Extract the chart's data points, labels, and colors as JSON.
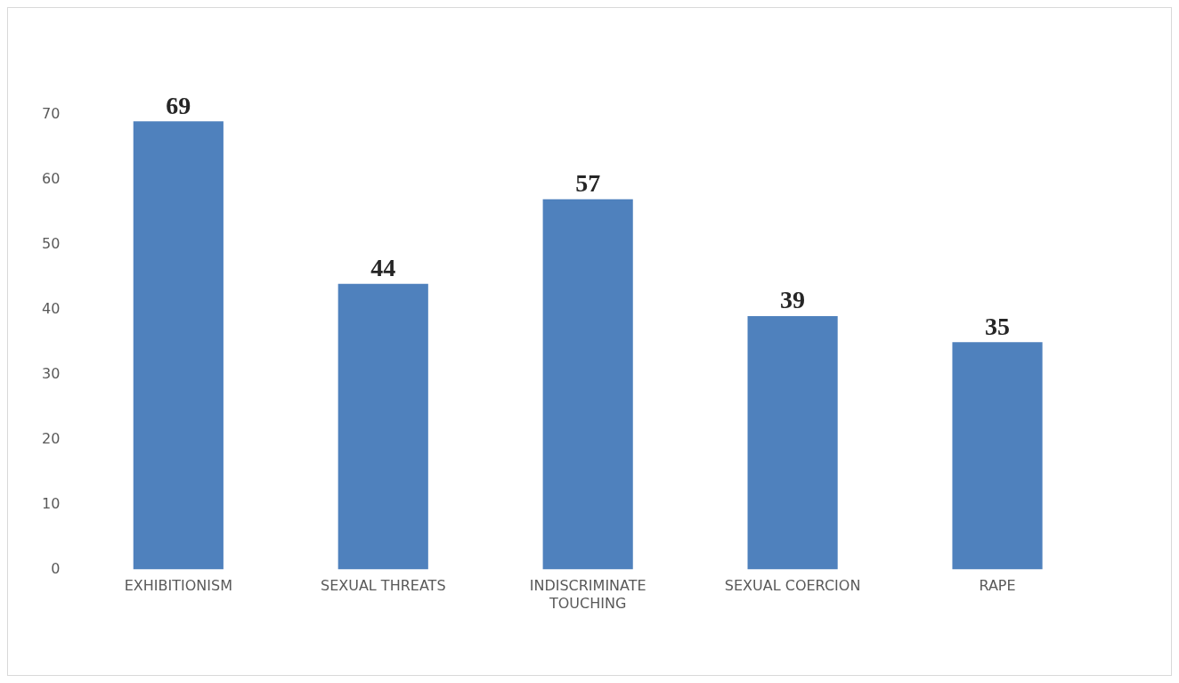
{
  "chart_data": {
    "type": "bar",
    "categories": [
      "EXHIBITIONISM",
      "SEXUAL THREATS",
      "INDISCRIMINATE TOUCHING",
      "SEXUAL COERCION",
      "RAPE"
    ],
    "values": [
      69,
      44,
      57,
      39,
      35
    ],
    "color": "#4f81bd",
    "ylim": [
      0,
      70
    ],
    "yticks": [
      0,
      10,
      20,
      30,
      40,
      50,
      60,
      70
    ],
    "grid": false,
    "legend": false,
    "data_labels": true
  }
}
